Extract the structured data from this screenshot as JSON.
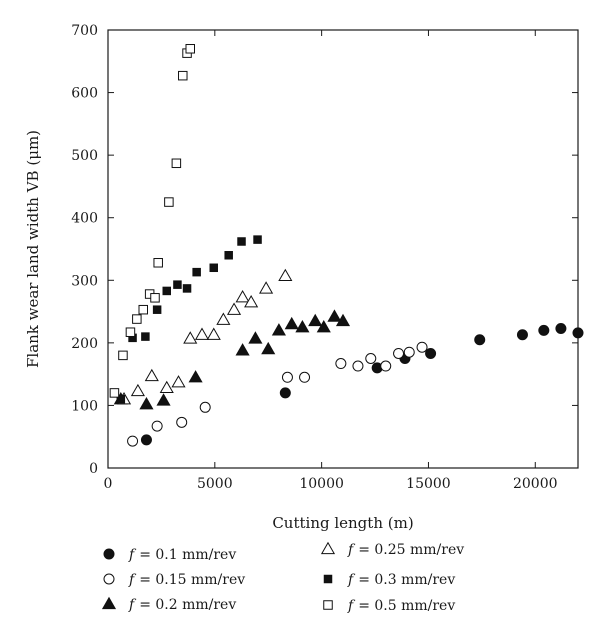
{
  "chart_data": {
    "type": "scatter",
    "xlabel": "Cutting length (m)",
    "ylabel": "Flank wear  land width VB (μm)",
    "xlim": [
      0,
      22000
    ],
    "ylim": [
      0,
      700
    ],
    "x_ticks": [
      0,
      5000,
      10000,
      15000,
      20000
    ],
    "y_ticks": [
      0,
      100,
      200,
      300,
      400,
      500,
      600,
      700
    ],
    "x_tick_labels": [
      "0",
      "5000",
      "10000",
      "15000",
      "20000"
    ],
    "y_tick_labels": [
      "0",
      "100",
      "200",
      "300",
      "400",
      "500",
      "600",
      "700"
    ],
    "grid": false,
    "legend_position": "bottom",
    "series": [
      {
        "name": "f = 0.1 mm/rev",
        "f_symbol": "f",
        "value_text": "= 0.1 mm/rev",
        "marker": "filled-circle",
        "points": [
          [
            1800,
            45
          ],
          [
            8300,
            120
          ],
          [
            12600,
            160
          ],
          [
            13900,
            175
          ],
          [
            15100,
            183
          ],
          [
            17400,
            205
          ],
          [
            19400,
            213
          ],
          [
            20400,
            220
          ],
          [
            21200,
            223
          ],
          [
            22000,
            216
          ]
        ]
      },
      {
        "name": "f = 0.15 mm/rev",
        "f_symbol": "f",
        "value_text": "= 0.15 mm/rev",
        "marker": "open-circle",
        "points": [
          [
            1150,
            43
          ],
          [
            2300,
            67
          ],
          [
            3450,
            73
          ],
          [
            4550,
            97
          ],
          [
            8400,
            145
          ],
          [
            9200,
            145
          ],
          [
            10900,
            167
          ],
          [
            11700,
            163
          ],
          [
            12300,
            175
          ],
          [
            13000,
            163
          ],
          [
            13600,
            183
          ],
          [
            14100,
            185
          ],
          [
            14700,
            193
          ]
        ]
      },
      {
        "name": "f = 0.2 mm/rev",
        "f_symbol": "f",
        "value_text": "= 0.2 mm/rev",
        "marker": "filled-triangle",
        "points": [
          [
            600,
            110
          ],
          [
            1800,
            102
          ],
          [
            2600,
            108
          ],
          [
            4100,
            145
          ],
          [
            6300,
            188
          ],
          [
            6900,
            207
          ],
          [
            7500,
            190
          ],
          [
            8000,
            220
          ],
          [
            8600,
            230
          ],
          [
            9100,
            225
          ],
          [
            9700,
            235
          ],
          [
            10100,
            225
          ],
          [
            10600,
            242
          ],
          [
            11000,
            235
          ]
        ]
      },
      {
        "name": "f = 0.25 mm/rev",
        "f_symbol": "f",
        "value_text": "= 0.25 mm/rev",
        "marker": "open-triangle",
        "points": [
          [
            750,
            110
          ],
          [
            1400,
            123
          ],
          [
            2050,
            147
          ],
          [
            2750,
            128
          ],
          [
            3300,
            137
          ],
          [
            3850,
            207
          ],
          [
            4400,
            213
          ],
          [
            4950,
            213
          ],
          [
            5400,
            237
          ],
          [
            5900,
            253
          ],
          [
            6300,
            273
          ],
          [
            6700,
            265
          ],
          [
            7400,
            287
          ],
          [
            8300,
            307
          ]
        ]
      },
      {
        "name": "f = 0.3 mm/rev",
        "f_symbol": "f",
        "value_text": "= 0.3 mm/rev",
        "marker": "filled-square",
        "points": [
          [
            600,
            110
          ],
          [
            1150,
            208
          ],
          [
            1750,
            210
          ],
          [
            2300,
            253
          ],
          [
            2750,
            283
          ],
          [
            3250,
            293
          ],
          [
            3700,
            287
          ],
          [
            4150,
            313
          ],
          [
            4950,
            320
          ],
          [
            5650,
            340
          ],
          [
            6250,
            362
          ],
          [
            7000,
            365
          ]
        ]
      },
      {
        "name": "f = 0.5 mm/rev",
        "f_symbol": "f",
        "value_text": "= 0.5 mm/rev",
        "marker": "open-square",
        "points": [
          [
            300,
            120
          ],
          [
            700,
            180
          ],
          [
            1050,
            217
          ],
          [
            1350,
            238
          ],
          [
            1650,
            253
          ],
          [
            1950,
            278
          ],
          [
            2200,
            272
          ],
          [
            2350,
            328
          ],
          [
            2850,
            425
          ],
          [
            3200,
            487
          ],
          [
            3500,
            627
          ],
          [
            3700,
            663
          ],
          [
            3850,
            670
          ]
        ]
      }
    ]
  }
}
